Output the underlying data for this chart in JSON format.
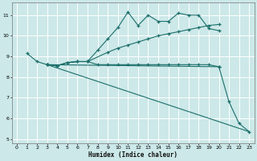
{
  "xlabel": "Humidex (Indice chaleur)",
  "bg_color": "#cce8e8",
  "grid_color": "#ffffff",
  "line_color": "#1a6e6a",
  "xlim": [
    -0.5,
    23.5
  ],
  "ylim": [
    4.8,
    11.6
  ],
  "xticks": [
    0,
    1,
    2,
    3,
    4,
    5,
    6,
    7,
    8,
    9,
    10,
    11,
    12,
    13,
    14,
    15,
    16,
    17,
    18,
    19,
    20,
    21,
    22,
    23
  ],
  "yticks": [
    5,
    6,
    7,
    8,
    9,
    10,
    11
  ],
  "line1_x": [
    1,
    2,
    3,
    4,
    5,
    6,
    7,
    8,
    9,
    10,
    11,
    12,
    13,
    14,
    15,
    16,
    17,
    18,
    19,
    20
  ],
  "line1_y": [
    9.15,
    8.75,
    8.6,
    8.55,
    8.7,
    8.75,
    8.75,
    9.3,
    9.85,
    10.4,
    11.15,
    10.5,
    11.0,
    10.7,
    10.7,
    11.1,
    11.0,
    11.0,
    10.35,
    10.25
  ],
  "line2_x": [
    3,
    4,
    5,
    6,
    7,
    9,
    10,
    11,
    12,
    13,
    14,
    15,
    16,
    17,
    18,
    19,
    20
  ],
  "line2_y": [
    8.6,
    8.55,
    8.7,
    8.75,
    8.75,
    9.2,
    9.4,
    9.55,
    9.7,
    9.85,
    10.0,
    10.1,
    10.2,
    10.3,
    10.4,
    10.5,
    10.55
  ],
  "line3_x": [
    3,
    4,
    5,
    6,
    7,
    8,
    9,
    10,
    11,
    12,
    13,
    14,
    15,
    16,
    17,
    18,
    19,
    20
  ],
  "line3_y": [
    8.6,
    8.55,
    8.7,
    8.75,
    8.75,
    8.6,
    8.6,
    8.6,
    8.6,
    8.6,
    8.6,
    8.6,
    8.6,
    8.6,
    8.6,
    8.6,
    8.6,
    8.5
  ],
  "line4_x": [
    3,
    23
  ],
  "line4_y": [
    8.6,
    5.35
  ],
  "line5_x": [
    3,
    20,
    21,
    22,
    23
  ],
  "line5_y": [
    8.6,
    8.5,
    6.8,
    5.75,
    5.35
  ]
}
